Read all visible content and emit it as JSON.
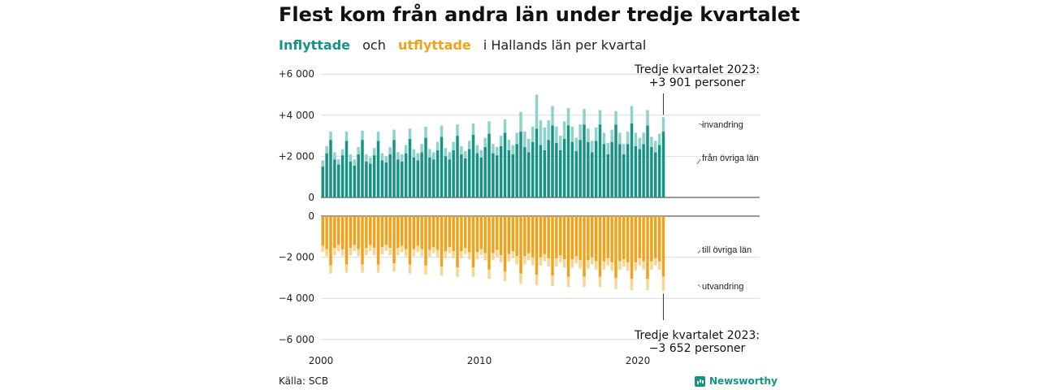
{
  "title": "Flest kom från andra län under tredje kvartalet",
  "subtitle": {
    "part1": "Inflyttade",
    "part2": "och",
    "part3": "utflyttade",
    "part4": "i Hallands län per kvartal"
  },
  "source": "Källa: SCB",
  "brand": "Newsworthy",
  "colors": {
    "inflow_dark": "#169384",
    "inflow_light": "#8dd3c9",
    "outflow_dark": "#f0a21a",
    "outflow_light": "#f7d594"
  },
  "chart_data": {
    "type": "bar",
    "x_start": 2000.0,
    "quarters_per_year": 4,
    "x_ticks": [
      "2000",
      "2010",
      "2020"
    ],
    "y_ticks_top": [
      "+6 000",
      "+4 000",
      "+2 000",
      "0"
    ],
    "y_ticks_bottom": [
      "0",
      "−2 000",
      "−4 000",
      "−6 000"
    ],
    "ylim_top": [
      0,
      6000
    ],
    "ylim_bottom": [
      -6000,
      0
    ],
    "series": [
      {
        "name": "från övriga län",
        "values": [
          1500,
          2150,
          2800,
          1850,
          1600,
          2050,
          2750,
          1750,
          1550,
          2100,
          2800,
          1750,
          1650,
          2050,
          2750,
          1800,
          1700,
          2100,
          2800,
          1850,
          1750,
          2150,
          2850,
          1950,
          1800,
          2200,
          2900,
          1950,
          1850,
          2300,
          2950,
          2000,
          1850,
          2300,
          3000,
          2100,
          1900,
          2350,
          3050,
          2150,
          1950,
          2450,
          3100,
          2150,
          2050,
          2500,
          3150,
          2300,
          2100,
          2600,
          3200,
          2450,
          2200,
          2700,
          3350,
          2550,
          2300,
          2800,
          3500,
          2650,
          2300,
          2850,
          3500,
          2700,
          2250,
          2800,
          3550,
          2700,
          2200,
          2750,
          3550,
          2600,
          2100,
          2700,
          3550,
          2600,
          2100,
          2600,
          3600,
          2500,
          2350,
          2600,
          3500,
          2450,
          2200,
          2550,
          3201
        ]
      },
      {
        "name": "invandring",
        "values": [
          300,
          350,
          400,
          350,
          250,
          300,
          450,
          350,
          300,
          350,
          450,
          350,
          300,
          350,
          450,
          350,
          300,
          350,
          500,
          350,
          350,
          400,
          500,
          400,
          350,
          400,
          550,
          400,
          350,
          400,
          550,
          400,
          350,
          400,
          550,
          400,
          350,
          400,
          550,
          400,
          350,
          450,
          600,
          450,
          400,
          500,
          650,
          500,
          450,
          550,
          950,
          750,
          650,
          750,
          1650,
          1200,
          1100,
          950,
          950,
          800,
          700,
          850,
          850,
          750,
          650,
          750,
          750,
          650,
          550,
          650,
          700,
          550,
          550,
          600,
          650,
          550,
          500,
          600,
          850,
          650,
          550,
          550,
          750,
          500,
          550,
          550,
          700
        ]
      },
      {
        "name": "till övriga län",
        "values": [
          -1450,
          -1600,
          -2400,
          -1550,
          -1400,
          -1600,
          -2350,
          -1550,
          -1400,
          -1600,
          -2350,
          -1550,
          -1400,
          -1550,
          -2350,
          -1500,
          -1400,
          -1550,
          -2300,
          -1550,
          -1450,
          -1600,
          -2350,
          -1600,
          -1450,
          -1600,
          -2400,
          -1650,
          -1500,
          -1650,
          -2450,
          -1700,
          -1500,
          -1700,
          -2500,
          -1700,
          -1550,
          -1750,
          -2500,
          -1750,
          -1600,
          -1800,
          -2600,
          -1800,
          -1650,
          -1900,
          -2700,
          -1850,
          -1700,
          -1950,
          -2800,
          -1950,
          -1800,
          -2000,
          -2850,
          -2000,
          -1850,
          -2050,
          -2900,
          -2050,
          -1900,
          -2100,
          -2950,
          -2100,
          -1950,
          -2150,
          -2950,
          -2150,
          -2000,
          -2200,
          -2950,
          -2200,
          -2050,
          -2250,
          -3000,
          -2200,
          -2100,
          -2250,
          -3050,
          -2250,
          -2050,
          -2200,
          -3050,
          -2200,
          -2050,
          -2200,
          -2950
        ]
      },
      {
        "name": "utvandring",
        "values": [
          -300,
          -350,
          -400,
          -350,
          -300,
          -350,
          -400,
          -350,
          -300,
          -350,
          -400,
          -350,
          -300,
          -350,
          -400,
          -350,
          -300,
          -350,
          -400,
          -350,
          -300,
          -350,
          -450,
          -350,
          -300,
          -350,
          -450,
          -350,
          -300,
          -350,
          -450,
          -350,
          -300,
          -350,
          -450,
          -350,
          -300,
          -350,
          -450,
          -350,
          -300,
          -350,
          -450,
          -350,
          -350,
          -350,
          -450,
          -350,
          -350,
          -400,
          -500,
          -400,
          -350,
          -400,
          -500,
          -400,
          -350,
          -400,
          -500,
          -400,
          -350,
          -400,
          -500,
          -400,
          -350,
          -400,
          -500,
          -400,
          -350,
          -400,
          -500,
          -400,
          -350,
          -400,
          -550,
          -400,
          -350,
          -400,
          -550,
          -400,
          -350,
          -400,
          -550,
          -400,
          -350,
          -400,
          -702
        ]
      }
    ],
    "annotations": {
      "top": [
        "Tredje kvartalet 2023:",
        "+3 901 personer"
      ],
      "bottom": [
        "Tredje kvartalet 2023:",
        "−3 652 personer"
      ]
    }
  }
}
